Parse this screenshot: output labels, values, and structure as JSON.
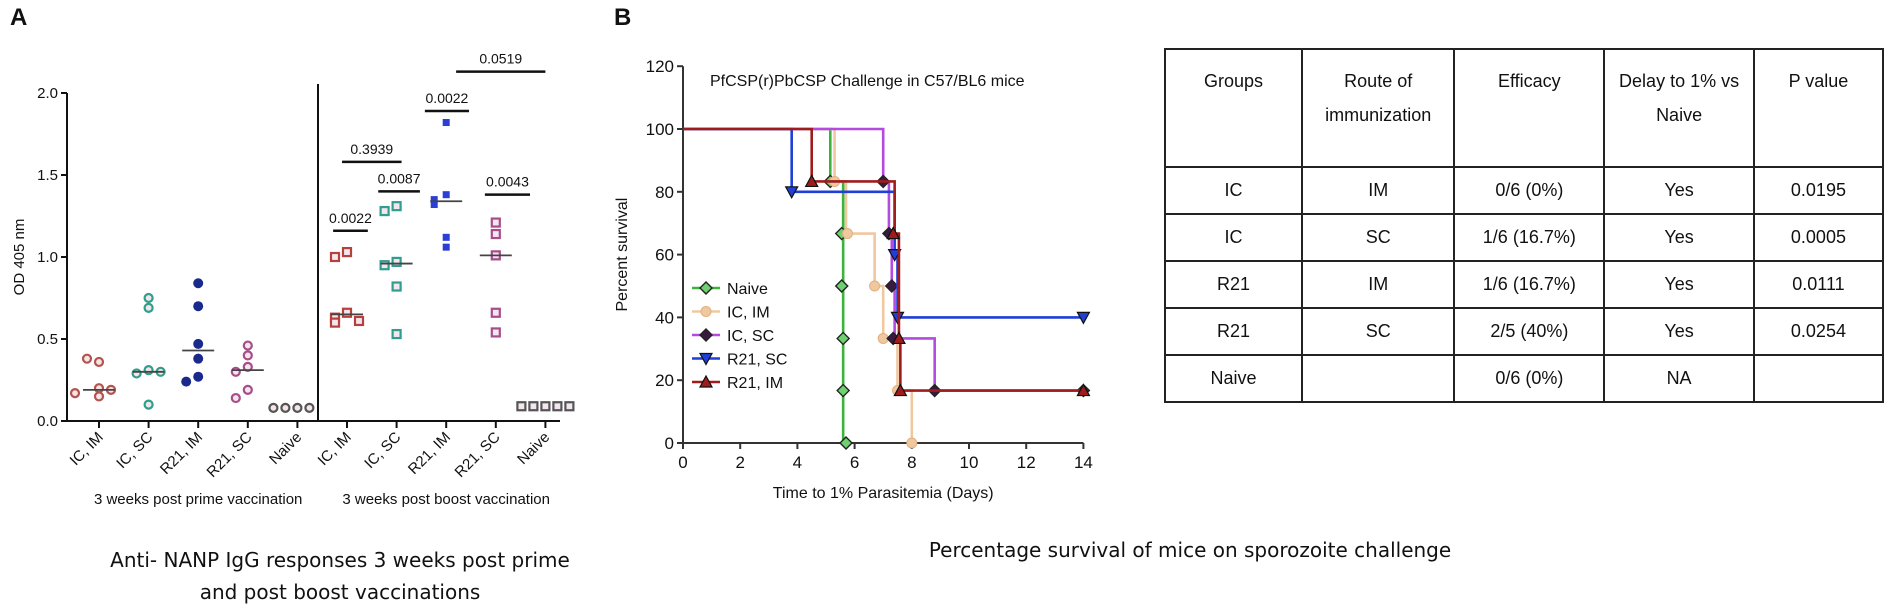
{
  "panel_labels": {
    "a": "A",
    "b": "B"
  },
  "captions": {
    "a_line1": "Anti- NANP IgG responses 3 weeks post prime",
    "a_line2": "and post boost vaccinations",
    "b": "Percentage survival of mice on sporozoite challenge"
  },
  "chart_data": [
    {
      "type": "scatter",
      "panel": "A",
      "ylabel": "OD  405 nm",
      "ylim": [
        0,
        2
      ],
      "yticks": [
        0,
        0.5,
        1,
        1.5,
        2
      ],
      "ytick_labels": [
        "0.0",
        "0.5",
        "1.0",
        "1.5",
        "2.0"
      ],
      "sections": [
        {
          "label": "3 weeks post prime vaccination",
          "groups": [
            {
              "name": "IC, IM",
              "marker": "open-circle",
              "color": "#b5534f",
              "values": [
                0.36,
                0.38,
                0.2,
                0.15,
                0.19,
                0.17
              ],
              "median": 0.19
            },
            {
              "name": "IC, SC",
              "marker": "open-circle",
              "color": "#2f9e8f",
              "values": [
                0.75,
                0.69,
                0.31,
                0.29,
                0.3,
                0.1
              ],
              "median": 0.3
            },
            {
              "name": "R21, IM",
              "marker": "filled-circle",
              "color": "#1a2a8c",
              "values": [
                0.84,
                0.7,
                0.47,
                0.38,
                0.27,
                0.24
              ],
              "median": 0.43
            },
            {
              "name": "R21, SC",
              "marker": "open-circle",
              "color": "#a84d8c",
              "values": [
                0.46,
                0.4,
                0.33,
                0.3,
                0.19,
                0.14
              ],
              "median": 0.31
            },
            {
              "name": "Naive",
              "marker": "open-circle",
              "color": "#555555",
              "values": [
                0.08,
                0.08,
                0.08,
                0.08
              ],
              "median": null
            }
          ]
        },
        {
          "label": "3 weeks post boost vaccination",
          "groups": [
            {
              "name": "IC, IM",
              "marker": "open-square",
              "color": "#b5403c",
              "values": [
                1.03,
                1.0,
                0.66,
                0.63,
                0.6,
                0.61
              ],
              "median": 0.65
            },
            {
              "name": "IC, SC",
              "marker": "open-square",
              "color": "#2f9e8f",
              "values": [
                1.31,
                1.28,
                0.97,
                0.95,
                0.82,
                0.53
              ],
              "median": 0.96
            },
            {
              "name": "R21, IM",
              "marker": "filled-square",
              "color": "#2b3fd6",
              "values": [
                1.82,
                1.38,
                1.35,
                1.32,
                1.12,
                1.06
              ],
              "median": 1.34
            },
            {
              "name": "R21, SC",
              "marker": "open-square",
              "color": "#a84d8c",
              "values": [
                1.21,
                1.14,
                1.01,
                0.66,
                0.54
              ],
              "median": 1.01
            },
            {
              "name": "Naive",
              "marker": "open-square",
              "color": "#555555",
              "values": [
                0.09,
                0.09,
                0.09,
                0.09,
                0.09
              ],
              "median": null
            }
          ]
        }
      ],
      "comparisons": [
        {
          "label": "0.0022",
          "from": 4.72,
          "to": 5.42,
          "y": 1.16
        },
        {
          "label": "0.3939",
          "from": 4.9,
          "to": 6.1,
          "y": 1.58
        },
        {
          "label": "0.0087",
          "from": 5.63,
          "to": 6.47,
          "y": 1.4
        },
        {
          "label": "0.0022",
          "from": 6.57,
          "to": 7.46,
          "y": 1.89
        },
        {
          "label": "0.0043",
          "from": 7.78,
          "to": 8.69,
          "y": 1.38
        },
        {
          "label": "0.0519",
          "from": 7.2,
          "to": 9.0,
          "y": 2.13
        }
      ]
    },
    {
      "type": "line",
      "panel": "B",
      "title": "PfCSP(r)PbCSP Challenge in C57/BL6 mice",
      "xlabel": "Time to 1% Parasitemia (Days)",
      "ylabel": "Percent survival",
      "xlim": [
        0,
        14
      ],
      "ylim": [
        0,
        120
      ],
      "xticks": [
        0,
        2,
        4,
        6,
        8,
        10,
        12,
        14
      ],
      "yticks": [
        0,
        20,
        40,
        60,
        80,
        100,
        120
      ],
      "legend": "left-middle",
      "series": [
        {
          "name": "Naive",
          "color": "#3cb43c",
          "marker": "diamond",
          "marker_fill": "#6fd06f",
          "steps": [
            [
              0,
              100
            ],
            [
              5.15,
              83.3
            ],
            [
              5.6,
              0
            ]
          ],
          "markers": [
            [
              5.15,
              83.3
            ],
            [
              5.55,
              66.7
            ],
            [
              5.55,
              50
            ],
            [
              5.6,
              33.3
            ],
            [
              5.6,
              16.7
            ],
            [
              5.7,
              0
            ]
          ]
        },
        {
          "name": "IC, IM",
          "color": "#f0c8a0",
          "marker": "circle",
          "marker_fill": "#f0c8a0",
          "steps": [
            [
              0,
              100
            ],
            [
              5.3,
              83.3
            ],
            [
              5.7,
              66.7
            ],
            [
              6.7,
              50
            ],
            [
              7.0,
              33.3
            ],
            [
              7.5,
              16.7
            ],
            [
              8.0,
              0
            ]
          ],
          "markers": [
            [
              5.3,
              83.3
            ],
            [
              5.75,
              66.7
            ],
            [
              6.7,
              50
            ],
            [
              7.0,
              33.3
            ],
            [
              7.5,
              16.7
            ],
            [
              8.0,
              0
            ]
          ]
        },
        {
          "name": "IC, SC",
          "color": "#b44be1",
          "marker": "diamond",
          "marker_fill": "#3a1a40",
          "steps": [
            [
              0,
              100
            ],
            [
              7.0,
              83.3
            ],
            [
              7.2,
              66.7
            ],
            [
              7.3,
              50
            ],
            [
              7.4,
              33.3
            ],
            [
              8.8,
              16.7
            ],
            [
              14,
              16.7
            ]
          ],
          "markers": [
            [
              7.0,
              83.3
            ],
            [
              7.2,
              66.7
            ],
            [
              7.3,
              50
            ],
            [
              7.35,
              33.3
            ],
            [
              8.8,
              16.7
            ],
            [
              14,
              16.7
            ]
          ]
        },
        {
          "name": "R21, SC",
          "color": "#1f3fd8",
          "marker": "triangle-down",
          "marker_fill": "#1f3fd8",
          "steps": [
            [
              0,
              100
            ],
            [
              3.8,
              80
            ],
            [
              7.4,
              60
            ],
            [
              7.5,
              40
            ],
            [
              14,
              40
            ]
          ],
          "markers": [
            [
              3.8,
              80
            ],
            [
              7.4,
              60
            ],
            [
              7.5,
              40
            ],
            [
              14,
              40
            ]
          ]
        },
        {
          "name": "R21, IM",
          "color": "#a01c1c",
          "marker": "triangle-up",
          "marker_fill": "#a01c1c",
          "steps": [
            [
              0,
              100
            ],
            [
              4.5,
              83.3
            ],
            [
              7.4,
              66.7
            ],
            [
              7.55,
              33.3
            ],
            [
              7.6,
              16.7
            ],
            [
              14,
              16.7
            ]
          ],
          "markers": [
            [
              4.5,
              83.3
            ],
            [
              7.35,
              66.7
            ],
            [
              7.55,
              33.3
            ],
            [
              7.6,
              16.7
            ],
            [
              14,
              16.7
            ]
          ]
        }
      ]
    },
    {
      "type": "table",
      "headers": [
        "Groups",
        "Route of immunization",
        "Efficacy",
        "Delay to 1% vs Naive",
        "P value"
      ],
      "rows": [
        [
          "IC",
          "IM",
          "0/6 (0%)",
          "Yes",
          "0.0195"
        ],
        [
          "IC",
          "SC",
          "1/6 (16.7%)",
          "Yes",
          "0.0005"
        ],
        [
          "R21",
          "IM",
          "1/6 (16.7%)",
          "Yes",
          "0.0111"
        ],
        [
          "R21",
          "SC",
          "2/5 (40%)",
          "Yes",
          "0.0254"
        ],
        [
          "Naive",
          "",
          "0/6 (0%)",
          "NA",
          ""
        ]
      ]
    }
  ]
}
